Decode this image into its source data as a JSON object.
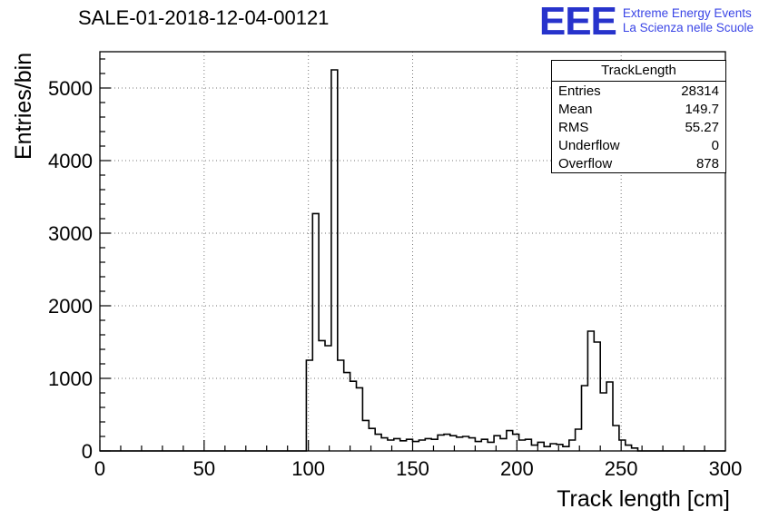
{
  "header": {
    "title": "SALE-01-2018-12-04-00121",
    "logo": {
      "acronym": "EEE",
      "line1": "Extreme Energy Events",
      "line2": "La Scienza nelle Scuole"
    }
  },
  "stats_box": {
    "title": "TrackLength",
    "rows": [
      {
        "label": "Entries",
        "value": "28314"
      },
      {
        "label": "Mean",
        "value": "149.7"
      },
      {
        "label": "RMS",
        "value": "55.27"
      },
      {
        "label": "Underflow",
        "value": "0"
      },
      {
        "label": "Overflow",
        "value": "878"
      }
    ]
  },
  "colors": {
    "logo_blue": "#2733cc",
    "logo_text_blue": "#3a45e6",
    "hist_line": "#000000",
    "grid": "#777777",
    "axis": "#000000"
  },
  "chart_data": {
    "type": "bar",
    "title": "SALE-01-2018-12-04-00121",
    "xlabel": "Track length [cm]",
    "ylabel": "Entries/bin",
    "xlim": [
      0,
      300
    ],
    "ylim": [
      0,
      5500
    ],
    "x_ticks": [
      0,
      50,
      100,
      150,
      200,
      250,
      300
    ],
    "y_ticks": [
      0,
      1000,
      2000,
      3000,
      4000,
      5000
    ],
    "x_minor": 10,
    "y_minor": 200,
    "grid": true,
    "legend": "none",
    "bin_start": 0,
    "bin_width": 3,
    "counts": [
      0,
      0,
      0,
      0,
      0,
      0,
      0,
      0,
      0,
      0,
      0,
      0,
      0,
      0,
      0,
      0,
      0,
      0,
      0,
      0,
      0,
      0,
      0,
      0,
      0,
      0,
      0,
      0,
      0,
      0,
      0,
      0,
      0,
      1250,
      3270,
      1520,
      1450,
      5250,
      1250,
      1080,
      960,
      870,
      420,
      310,
      230,
      180,
      150,
      170,
      140,
      160,
      130,
      150,
      170,
      160,
      220,
      230,
      210,
      190,
      200,
      180,
      130,
      160,
      120,
      210,
      170,
      280,
      230,
      150,
      160,
      80,
      120,
      60,
      100,
      90,
      60,
      150,
      300,
      900,
      1650,
      1500,
      800,
      950,
      350,
      150,
      80,
      40,
      0,
      0,
      0,
      0,
      0,
      0,
      0,
      0,
      0,
      0,
      0,
      0,
      0,
      0
    ]
  }
}
